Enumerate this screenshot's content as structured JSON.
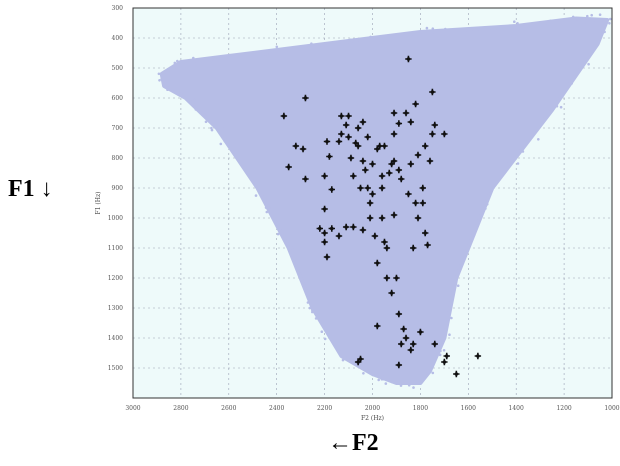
{
  "labels": {
    "f1_outer": "F1 ↓",
    "f2_outer": "←F2"
  },
  "colors": {
    "plot_background": "#eefafa",
    "cloud": "#b6bde6",
    "marker": "#111111",
    "grid": "#9aa0b4",
    "frame": "#333333"
  },
  "chart_data": {
    "type": "scatter",
    "xlabel": "F2 (Hz)",
    "ylabel": "F1 (Hz)",
    "x_reversed": true,
    "y_reversed": true,
    "xlim": [
      3000,
      1000
    ],
    "ylim": [
      300,
      1600
    ],
    "xticks": [
      3000,
      2800,
      2600,
      2400,
      2200,
      2000,
      1800,
      1600,
      1400,
      1200,
      1000
    ],
    "yticks": [
      300,
      400,
      500,
      600,
      700,
      800,
      900,
      1000,
      1100,
      1200,
      1300,
      1400,
      1500
    ],
    "grid": true,
    "series": [
      {
        "kind": "cloud",
        "outline": [
          [
            2880,
            520
          ],
          [
            2800,
            480
          ],
          [
            2600,
            460
          ],
          [
            2200,
            420
          ],
          [
            1800,
            380
          ],
          [
            1400,
            360
          ],
          [
            1150,
            335
          ],
          [
            1020,
            340
          ],
          [
            1060,
            420
          ],
          [
            1250,
            640
          ],
          [
            1500,
            900
          ],
          [
            1650,
            1200
          ],
          [
            1700,
            1400
          ],
          [
            1760,
            1510
          ],
          [
            1800,
            1550
          ],
          [
            1900,
            1550
          ],
          [
            2000,
            1520
          ],
          [
            2130,
            1460
          ],
          [
            2250,
            1300
          ],
          [
            2350,
            1100
          ],
          [
            2480,
            900
          ],
          [
            2650,
            700
          ],
          [
            2780,
            600
          ],
          [
            2870,
            560
          ]
        ]
      },
      {
        "kind": "points",
        "points": [
          [
            2370,
            660
          ],
          [
            2280,
            600
          ],
          [
            2290,
            770
          ],
          [
            2320,
            760
          ],
          [
            2350,
            830
          ],
          [
            2280,
            870
          ],
          [
            2200,
            970
          ],
          [
            2170,
            905
          ],
          [
            2190,
            745
          ],
          [
            2130,
            720
          ],
          [
            1910,
            720
          ],
          [
            1890,
            685
          ],
          [
            1850,
            470
          ],
          [
            2130,
            660
          ],
          [
            2100,
            660
          ],
          [
            2140,
            745
          ],
          [
            2060,
            760
          ],
          [
            2080,
            860
          ],
          [
            2040,
            810
          ],
          [
            2000,
            820
          ],
          [
            1960,
            860
          ],
          [
            2040,
            680
          ],
          [
            2110,
            690
          ],
          [
            2180,
            795
          ],
          [
            2090,
            800
          ],
          [
            2000,
            920
          ],
          [
            2020,
            730
          ],
          [
            1980,
            770
          ],
          [
            2200,
            860
          ],
          [
            2030,
            840
          ],
          [
            2050,
            900
          ],
          [
            1960,
            900
          ],
          [
            1950,
            760
          ],
          [
            1910,
            810
          ],
          [
            1930,
            850
          ],
          [
            2010,
            950
          ],
          [
            1970,
            760
          ],
          [
            1890,
            840
          ],
          [
            1880,
            870
          ],
          [
            1850,
            920
          ],
          [
            1910,
            990
          ],
          [
            1960,
            1000
          ],
          [
            2070,
            750
          ],
          [
            2100,
            730
          ],
          [
            2060,
            700
          ],
          [
            1780,
            760
          ],
          [
            1760,
            810
          ],
          [
            1810,
            790
          ],
          [
            1790,
            900
          ],
          [
            1790,
            950
          ],
          [
            1820,
            950
          ],
          [
            1750,
            720
          ],
          [
            1740,
            690
          ],
          [
            1700,
            720
          ],
          [
            1750,
            580
          ],
          [
            1820,
            620
          ],
          [
            1840,
            680
          ],
          [
            1860,
            650
          ],
          [
            1910,
            650
          ],
          [
            2010,
            1000
          ],
          [
            2040,
            1040
          ],
          [
            1990,
            1060
          ],
          [
            1950,
            1080
          ],
          [
            1940,
            1200
          ],
          [
            1920,
            1250
          ],
          [
            1900,
            1200
          ],
          [
            1890,
            1320
          ],
          [
            1870,
            1370
          ],
          [
            1860,
            1400
          ],
          [
            1880,
            1420
          ],
          [
            1830,
            1420
          ],
          [
            1840,
            1440
          ],
          [
            2050,
            1470
          ],
          [
            2060,
            1480
          ],
          [
            1980,
            1360
          ],
          [
            1980,
            1150
          ],
          [
            1940,
            1100
          ],
          [
            2170,
            1035
          ],
          [
            2220,
            1035
          ],
          [
            2200,
            1050
          ],
          [
            2140,
            1060
          ],
          [
            2190,
            1130
          ],
          [
            2200,
            1080
          ],
          [
            1560,
            1460
          ],
          [
            1650,
            1520
          ],
          [
            1690,
            1460
          ],
          [
            1740,
            1420
          ],
          [
            1700,
            1480
          ],
          [
            1800,
            1380
          ],
          [
            1890,
            1490
          ],
          [
            2080,
            1030
          ],
          [
            2110,
            1030
          ],
          [
            1830,
            1100
          ],
          [
            1810,
            1000
          ],
          [
            1780,
            1050
          ],
          [
            1770,
            1090
          ],
          [
            2020,
            900
          ],
          [
            1920,
            820
          ],
          [
            1840,
            820
          ]
        ]
      }
    ]
  }
}
